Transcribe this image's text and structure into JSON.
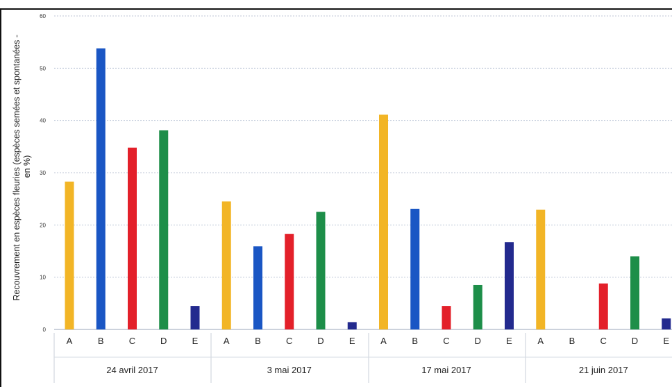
{
  "chart_data": {
    "type": "bar",
    "ylabel_line1": "Recouvrement en espèces fleuries (espèces semées et spontanées -",
    "ylabel_line2": "en %)",
    "ylim": [
      0,
      60
    ],
    "yticks": [
      0,
      10,
      20,
      30,
      40,
      50,
      60
    ],
    "grid": true,
    "groups": [
      {
        "label": "24 avril 2017",
        "categories": [
          "A",
          "B",
          "C",
          "D",
          "E"
        ],
        "values": [
          28.3,
          53.8,
          34.8,
          38.1,
          4.5
        ]
      },
      {
        "label": "3 mai 2017",
        "categories": [
          "A",
          "B",
          "C",
          "D",
          "E"
        ],
        "values": [
          24.5,
          15.9,
          18.3,
          22.5,
          1.4
        ]
      },
      {
        "label": "17 mai 2017",
        "categories": [
          "A",
          "B",
          "C",
          "D",
          "E"
        ],
        "values": [
          41.1,
          23.1,
          4.5,
          8.5,
          16.7
        ]
      },
      {
        "label": "21 juin 2017",
        "categories": [
          "A",
          "B",
          "C",
          "D",
          "E"
        ],
        "values": [
          22.9,
          0,
          8.8,
          14.0,
          2.1
        ]
      }
    ],
    "colors": {
      "A": "#f2b526",
      "B": "#1a56c4",
      "C": "#e3202a",
      "D": "#1d8e49",
      "E": "#232a8e"
    }
  }
}
